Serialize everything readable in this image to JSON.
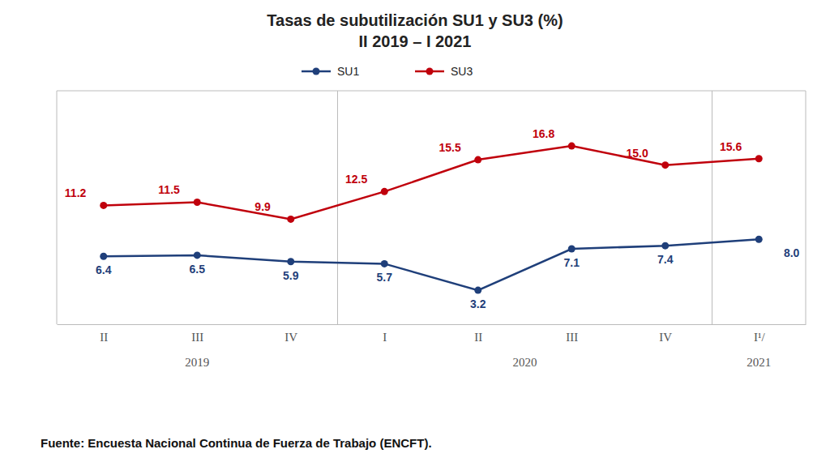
{
  "chart_data": {
    "type": "line",
    "title": "Tasas de subutilización SU1 y SU3 (%)",
    "subtitle": "II 2019 – I 2021",
    "categories": [
      "II",
      "III",
      "IV",
      "I",
      "II",
      "III",
      "IV",
      "I¹/"
    ],
    "series": [
      {
        "name": "SU1",
        "color": "#1f3f7a",
        "marker": "circle",
        "values": [
          6.4,
          6.5,
          5.9,
          5.7,
          3.2,
          7.1,
          7.4,
          8.0
        ],
        "value_labels": [
          "6.4",
          "6.5",
          "5.9",
          "5.7",
          "3.2",
          "7.1",
          "7.4",
          "8.0"
        ]
      },
      {
        "name": "SU3",
        "color": "#c0000c",
        "marker": "circle",
        "values": [
          11.2,
          11.5,
          9.9,
          12.5,
          15.5,
          16.8,
          15.0,
          15.6
        ],
        "value_labels": [
          "11.2",
          "11.5",
          "9.9",
          "12.5",
          "15.5",
          "16.8",
          "15.0",
          "15.6"
        ]
      }
    ],
    "ylim": [
      0,
      22
    ],
    "tick_labels": "x",
    "grid": false,
    "legend": "top",
    "data_labels": true,
    "annotations": [
      "2019",
      "2020",
      "2021",
      "Fuente: Encuesta Nacional Continua de Fuerza de Trabajo (ENCFT)."
    ]
  }
}
